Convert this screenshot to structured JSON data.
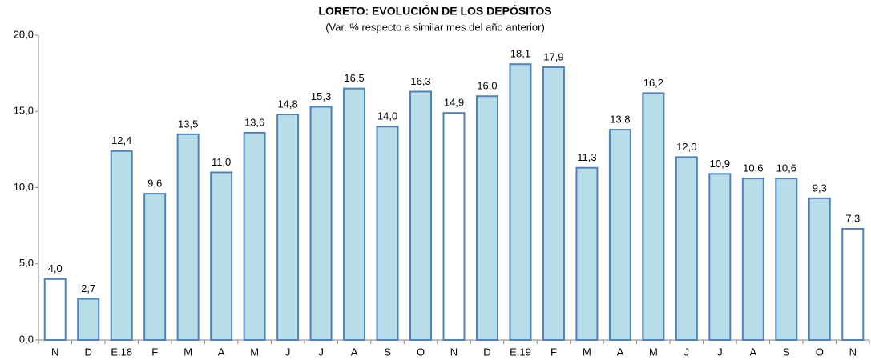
{
  "chart_data": {
    "type": "bar",
    "title": "LORETO: EVOLUCIÓN DE LOS DEPÓSITOS",
    "subtitle": "(Var. % respecto a similar mes del año anterior)",
    "categories": [
      "N",
      "D",
      "E.18",
      "F",
      "M",
      "A",
      "M",
      "J",
      "J",
      "A",
      "S",
      "O",
      "N",
      "D",
      "E.19",
      "F",
      "M",
      "A",
      "M",
      "J",
      "J",
      "A",
      "S",
      "O",
      "N"
    ],
    "values": [
      4.0,
      2.7,
      12.4,
      9.6,
      13.5,
      11.0,
      13.6,
      14.8,
      15.3,
      16.5,
      14.0,
      16.3,
      14.9,
      16.0,
      18.1,
      17.9,
      11.3,
      13.8,
      16.2,
      12.0,
      10.9,
      10.6,
      10.6,
      9.3,
      7.3
    ],
    "value_labels": [
      "4,0",
      "2,7",
      "12,4",
      "9,6",
      "13,5",
      "11,0",
      "13,6",
      "14,8",
      "15,3",
      "16,5",
      "14,0",
      "16,3",
      "14,9",
      "16,0",
      "18,1",
      "17,9",
      "11,3",
      "13,8",
      "16,2",
      "12,0",
      "10,9",
      "10,6",
      "10,6",
      "9,3",
      "7,3"
    ],
    "colors": [
      "#ffffff",
      "#b7dde8",
      "#b7dde8",
      "#b7dde8",
      "#b7dde8",
      "#b7dde8",
      "#b7dde8",
      "#b7dde8",
      "#b7dde8",
      "#b7dde8",
      "#b7dde8",
      "#b7dde8",
      "#ffffff",
      "#b7dde8",
      "#b7dde8",
      "#b7dde8",
      "#b7dde8",
      "#b7dde8",
      "#b7dde8",
      "#b7dde8",
      "#b7dde8",
      "#b7dde8",
      "#b7dde8",
      "#b7dde8",
      "#ffffff"
    ],
    "edge_color": "#4f81bd",
    "ylim": [
      0,
      20
    ],
    "yticks": [
      {
        "value": 0,
        "label": "0,0"
      },
      {
        "value": 5,
        "label": "5,0"
      },
      {
        "value": 10,
        "label": "10,0"
      },
      {
        "value": 15,
        "label": "15,0"
      },
      {
        "value": 20,
        "label": "20,0"
      }
    ],
    "grid": false
  }
}
